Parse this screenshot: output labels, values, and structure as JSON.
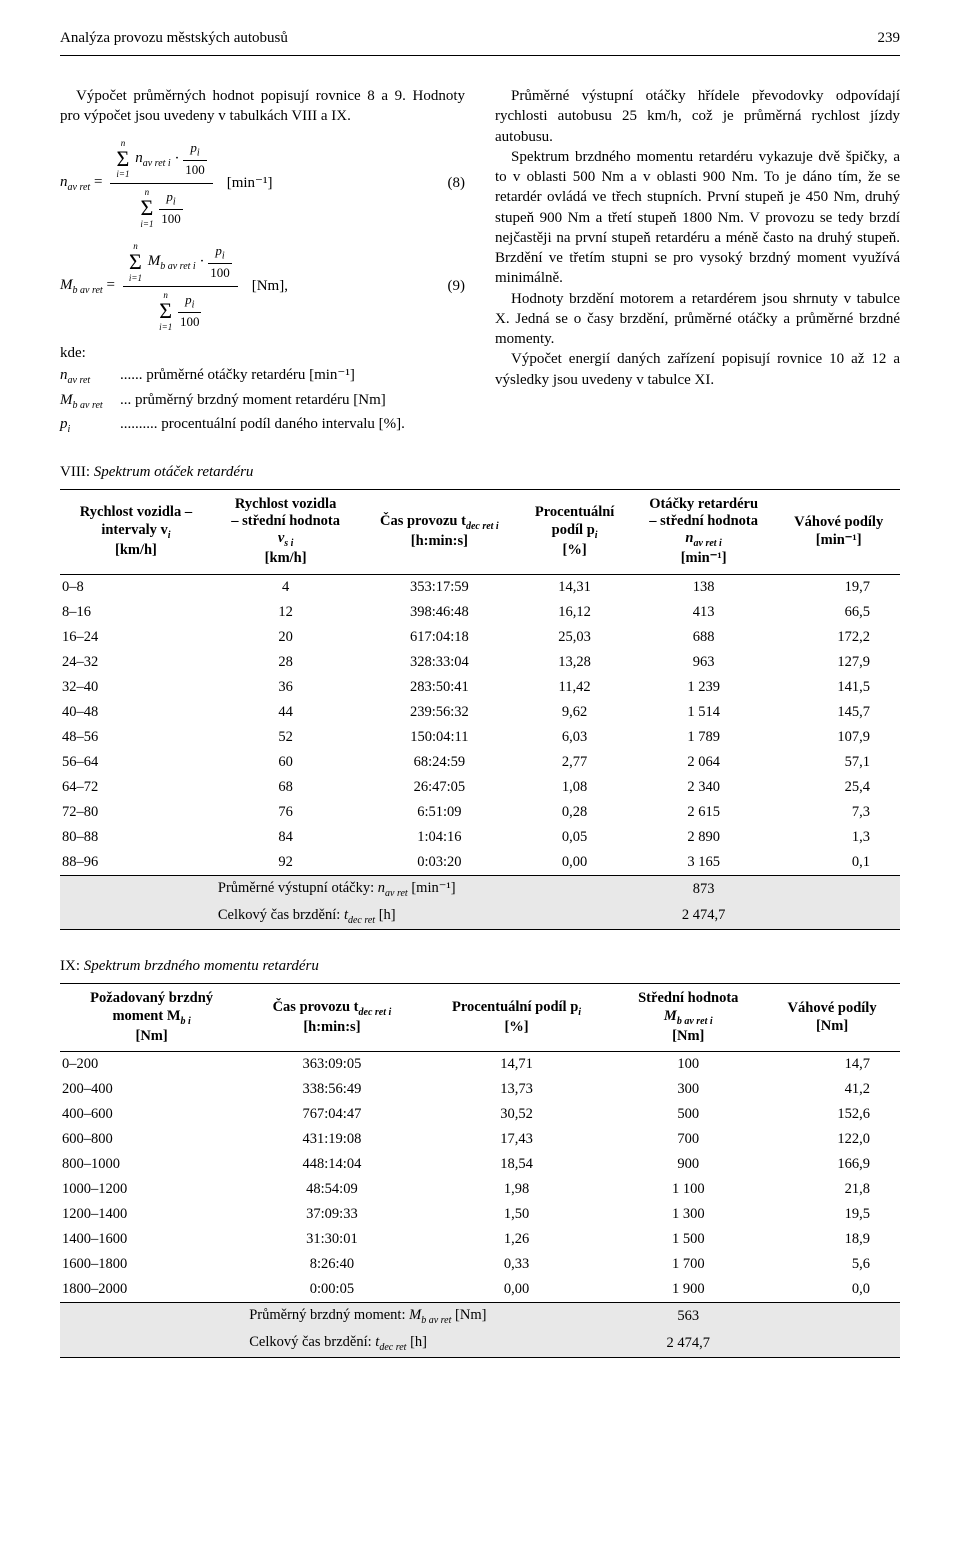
{
  "header": {
    "title": "Analýza provozu městských autobusů",
    "page_num": "239"
  },
  "left": {
    "para1_a": "Výpočet průměrných hodnot popisují rovnice 8 a 9. Hodnoty pro výpočet jsou uvedeny v tabulkách VIII a IX.",
    "eq8": {
      "lhs": "n",
      "lhs_sub": "av ret",
      "unit": "[min⁻¹]",
      "num": "(8)"
    },
    "eq9": {
      "lhs": "M",
      "lhs_sub": "b av ret",
      "unit": "[Nm],",
      "num": "(9)"
    },
    "kde": "kde:",
    "d1_sym": "n",
    "d1_sub": "av ret",
    "d1_txt": "...... průměrné otáčky retardéru [min⁻¹]",
    "d2_sym": "M",
    "d2_sub": "b av ret",
    "d2_txt": "... průměrný brzdný moment retardéru [Nm]",
    "d3_sym": "p",
    "d3_sub": "i",
    "d3_txt": ".......... procentuální podíl daného intervalu [%]."
  },
  "right": {
    "para": "Průměrné výstupní otáčky hřídele převodovky odpovídají rychlosti autobusu 25 km/h, což je průměrná rychlost jízdy autobusu.\nSpektrum brzdného momentu retardéru vykazuje dvě špičky, a to v oblasti 500 Nm a v oblasti 900 Nm. To je dáno tím, že se retardér ovládá ve třech stupních. První stupeň je 450 Nm, druhý stupeň 900 Nm a třetí stupeň 1800 Nm. V provozu se tedy brzdí nejčastěji na první stupeň retardéru a méně často na druhý stupeň. Brzdění ve třetím stupni se pro vysoký brzdný moment využívá minimálně.\nHodnoty brzdění motorem a retardérem jsou shrnuty v tabulce X. Jedná se o časy brzdění, průměrné otáčky a průměrné brzdné momenty.\nVýpočet energií daných zařízení popisují rovnice 10 až 12 a výsledky jsou uvedeny v tabulce XI."
  },
  "table_viii": {
    "caption_roman": "VIII:",
    "caption_title": "Spektrum otáček retardéru",
    "head": {
      "c1a": "Rychlost vozidla –",
      "c1b": "intervaly v",
      "c1b_sub": "i",
      "c1c": "[km/h]",
      "c2a": "Rychlost vozidla",
      "c2b": "– střední hodnota",
      "c2c": "v",
      "c2c_sub": "s i",
      "c2d": "[km/h]",
      "c3a": "Čas provozu t",
      "c3a_sub": "dec ret i",
      "c3b": "[h:min:s]",
      "c4a": "Procentuální",
      "c4b": "podíl p",
      "c4b_sub": "i",
      "c4c": "[%]",
      "c5a": "Otáčky retardéru",
      "c5b": "– střední hodnota",
      "c5c": "n",
      "c5c_sub": "av ret i",
      "c5d": "[min⁻¹]",
      "c6a": "Váhové podíly",
      "c6b": "[min⁻¹]"
    },
    "rows": [
      [
        "0–8",
        "4",
        "353:17:59",
        "14,31",
        "138",
        "19,7"
      ],
      [
        "8–16",
        "12",
        "398:46:48",
        "16,12",
        "413",
        "66,5"
      ],
      [
        "16–24",
        "20",
        "617:04:18",
        "25,03",
        "688",
        "172,2"
      ],
      [
        "24–32",
        "28",
        "328:33:04",
        "13,28",
        "963",
        "127,9"
      ],
      [
        "32–40",
        "36",
        "283:50:41",
        "11,42",
        "1 239",
        "141,5"
      ],
      [
        "40–48",
        "44",
        "239:56:32",
        "9,62",
        "1 514",
        "145,7"
      ],
      [
        "48–56",
        "52",
        "150:04:11",
        "6,03",
        "1 789",
        "107,9"
      ],
      [
        "56–64",
        "60",
        "68:24:59",
        "2,77",
        "2 064",
        "57,1"
      ],
      [
        "64–72",
        "68",
        "26:47:05",
        "1,08",
        "2 340",
        "25,4"
      ],
      [
        "72–80",
        "76",
        "6:51:09",
        "0,28",
        "2 615",
        "7,3"
      ],
      [
        "80–88",
        "84",
        "1:04:16",
        "0,05",
        "2 890",
        "1,3"
      ],
      [
        "88–96",
        "92",
        "0:03:20",
        "0,00",
        "3 165",
        "0,1"
      ]
    ],
    "sum1_label": "Průměrné výstupní otáčky: ",
    "sum1_sym": "n",
    "sum1_sub": "av ret",
    "sum1_unit": " [min⁻¹]",
    "sum1_val": "873",
    "sum2_label": "Celkový čas brzdění: ",
    "sum2_sym": "t",
    "sum2_sub": "dec ret",
    "sum2_unit": " [h]",
    "sum2_val": "2 474,7"
  },
  "table_ix": {
    "caption_roman": "IX:",
    "caption_title": "Spektrum brzdného momentu retardéru",
    "head": {
      "c1a": "Požadovaný brzdný",
      "c1b": "moment M",
      "c1b_sub": "b i",
      "c1c": "[Nm]",
      "c2a": "Čas provozu t",
      "c2a_sub": "dec ret i",
      "c2b": "[h:min:s]",
      "c3a": "Procentuální podíl p",
      "c3a_sub": "i",
      "c3b": "[%]",
      "c4a": "Střední hodnota",
      "c4b": "M",
      "c4b_sub": "b av ret i",
      "c4c": "[Nm]",
      "c5a": "Váhové podíly",
      "c5b": "[Nm]"
    },
    "rows": [
      [
        "0–200",
        "363:09:05",
        "14,71",
        "100",
        "14,7"
      ],
      [
        "200–400",
        "338:56:49",
        "13,73",
        "300",
        "41,2"
      ],
      [
        "400–600",
        "767:04:47",
        "30,52",
        "500",
        "152,6"
      ],
      [
        "600–800",
        "431:19:08",
        "17,43",
        "700",
        "122,0"
      ],
      [
        "800–1000",
        "448:14:04",
        "18,54",
        "900",
        "166,9"
      ],
      [
        "1000–1200",
        "48:54:09",
        "1,98",
        "1 100",
        "21,8"
      ],
      [
        "1200–1400",
        "37:09:33",
        "1,50",
        "1 300",
        "19,5"
      ],
      [
        "1400–1600",
        "31:30:01",
        "1,26",
        "1 500",
        "18,9"
      ],
      [
        "1600–1800",
        "8:26:40",
        "0,33",
        "1 700",
        "5,6"
      ],
      [
        "1800–2000",
        "0:00:05",
        "0,00",
        "1 900",
        "0,0"
      ]
    ],
    "sum1_label": "Průměrný brzdný moment: ",
    "sum1_sym": "M",
    "sum1_sub": "b av ret",
    "sum1_unit": " [Nm]",
    "sum1_val": "563",
    "sum2_label": "Celkový čas brzdění: ",
    "sum2_sym": "t",
    "sum2_sub": "dec ret",
    "sum2_unit": " [h]",
    "sum2_val": "2 474,7"
  }
}
